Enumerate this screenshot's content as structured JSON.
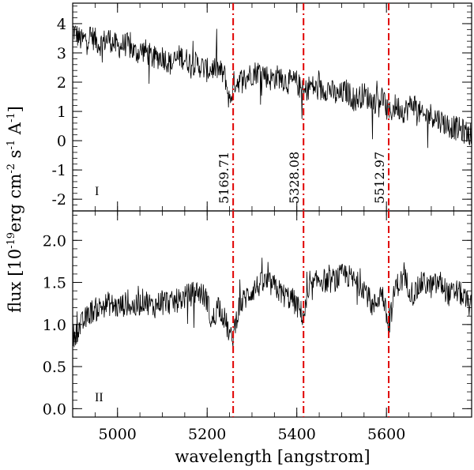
{
  "chart_data": {
    "type": "line",
    "xlabel": "wavelength [angstrom]",
    "ylabel_parts": [
      "flux [10",
      "-19",
      "erg cm",
      "-2",
      " s",
      "-1",
      " A",
      "-1",
      "]"
    ],
    "xlim": [
      4900,
      5790
    ],
    "x_ticks": [
      5000,
      5200,
      5400,
      5600
    ],
    "x_tick_labels": [
      "5000",
      "5200",
      "5400",
      "5600"
    ],
    "line_style_color": "#e00000",
    "line_color": "#000000",
    "reference_lines": [
      {
        "x": 5258,
        "label": "5169.71"
      },
      {
        "x": 5415,
        "label": "5328.08"
      },
      {
        "x": 5605,
        "label": "5512.97"
      }
    ],
    "panels": [
      {
        "label": "I",
        "ylim": [
          -2.4,
          4.7
        ],
        "y_ticks": [
          4,
          3,
          2,
          1,
          0,
          -1,
          -2
        ],
        "y_tick_labels": [
          "4",
          "3",
          "2",
          "1",
          "0",
          "-1",
          "-2"
        ],
        "series": {
          "name": "spectrum I",
          "x": [
            4900,
            4920,
            4940,
            4960,
            4980,
            5000,
            5020,
            5040,
            5060,
            5080,
            5100,
            5120,
            5140,
            5160,
            5180,
            5200,
            5220,
            5240,
            5250,
            5260,
            5280,
            5300,
            5320,
            5340,
            5360,
            5380,
            5400,
            5415,
            5430,
            5450,
            5470,
            5490,
            5510,
            5530,
            5550,
            5570,
            5590,
            5605,
            5620,
            5640,
            5660,
            5680,
            5700,
            5720,
            5740,
            5760,
            5790
          ],
          "y": [
            3.8,
            3.4,
            3.6,
            3.3,
            3.5,
            3.2,
            3.3,
            3.0,
            3.1,
            2.8,
            2.9,
            2.6,
            2.9,
            2.7,
            2.6,
            2.4,
            2.5,
            2.2,
            1.3,
            2.0,
            2.1,
            2.3,
            2.4,
            2.1,
            2.2,
            2.0,
            2.0,
            1.6,
            1.9,
            1.7,
            1.8,
            1.5,
            1.7,
            1.4,
            1.6,
            1.3,
            1.5,
            0.9,
            1.2,
            1.0,
            1.3,
            0.8,
            0.9,
            0.7,
            0.5,
            0.4,
            0.2
          ]
        }
      },
      {
        "label": "II",
        "ylim": [
          -0.1,
          2.35
        ],
        "y_ticks": [
          2.0,
          1.5,
          1.0,
          0.5,
          0.0
        ],
        "y_tick_labels": [
          "2.0",
          "1.5",
          "1.0",
          "0.5",
          "0.0"
        ],
        "series": {
          "name": "spectrum II",
          "x": [
            4900,
            4920,
            4940,
            4960,
            4980,
            5000,
            5020,
            5040,
            5060,
            5080,
            5100,
            5120,
            5140,
            5160,
            5180,
            5200,
            5210,
            5225,
            5240,
            5255,
            5270,
            5290,
            5310,
            5330,
            5350,
            5370,
            5390,
            5415,
            5430,
            5450,
            5470,
            5490,
            5510,
            5530,
            5550,
            5570,
            5590,
            5605,
            5620,
            5640,
            5660,
            5680,
            5700,
            5720,
            5740,
            5760,
            5790
          ],
          "y": [
            0.85,
            1.0,
            1.15,
            1.2,
            1.25,
            1.2,
            1.25,
            1.2,
            1.3,
            1.2,
            1.3,
            1.25,
            1.3,
            1.35,
            1.4,
            1.3,
            1.0,
            1.25,
            1.05,
            0.8,
            1.2,
            1.35,
            1.45,
            1.5,
            1.45,
            1.35,
            1.3,
            1.1,
            1.4,
            1.55,
            1.5,
            1.55,
            1.6,
            1.5,
            1.45,
            1.2,
            1.4,
            0.95,
            1.45,
            1.55,
            1.35,
            1.5,
            1.45,
            1.5,
            1.35,
            1.4,
            1.2
          ]
        }
      }
    ]
  }
}
